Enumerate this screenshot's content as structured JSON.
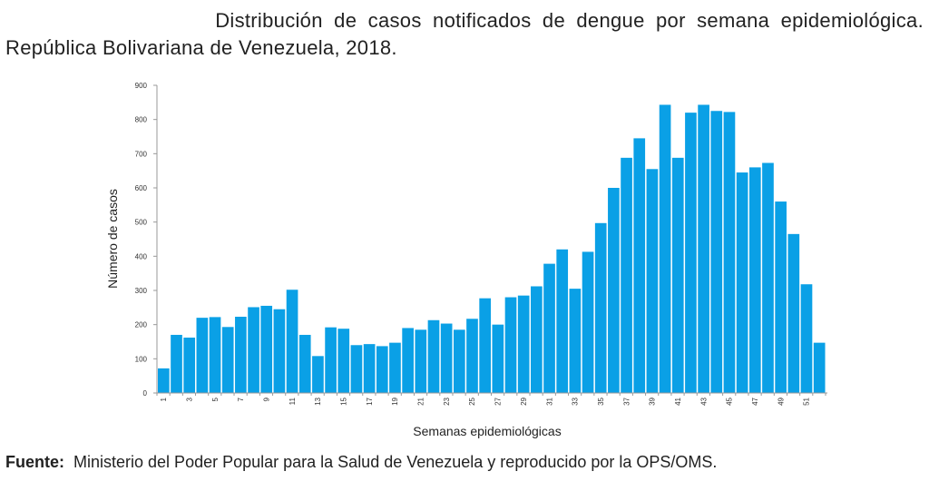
{
  "title_line1": "Distribución de casos notificados de dengue por semana epidemiológica.",
  "title_line2": "República Bolivariana de Venezuela, 2018.",
  "source_label": "Fuente:",
  "source_text": "Ministerio del Poder Popular para la Salud de Venezuela y reproducido por la OPS/OMS.",
  "chart_data": {
    "type": "bar",
    "xlabel": "Semanas epidemiológicas",
    "ylabel": "Número de casos",
    "ylim": [
      0,
      900
    ],
    "yticks": [
      0,
      100,
      200,
      300,
      400,
      500,
      600,
      700,
      800,
      900
    ],
    "grid": false,
    "bar_color": "#0aa0e6",
    "categories": [
      1,
      2,
      3,
      4,
      5,
      6,
      7,
      8,
      9,
      10,
      11,
      12,
      13,
      14,
      15,
      16,
      17,
      18,
      19,
      20,
      21,
      22,
      23,
      24,
      25,
      26,
      27,
      28,
      29,
      30,
      31,
      32,
      33,
      34,
      35,
      36,
      37,
      38,
      39,
      40,
      41,
      42,
      43,
      44,
      45,
      46,
      47,
      48,
      49,
      50,
      51,
      52
    ],
    "xtick_labels": [
      "1",
      "3",
      "5",
      "7",
      "9",
      "11",
      "13",
      "15",
      "17",
      "19",
      "21",
      "23",
      "25",
      "27",
      "29",
      "31",
      "33",
      "35",
      "37",
      "39",
      "41",
      "43",
      "45",
      "47",
      "49",
      "51"
    ],
    "values": [
      72,
      170,
      162,
      220,
      222,
      193,
      223,
      251,
      255,
      245,
      302,
      170,
      108,
      192,
      188,
      140,
      143,
      137,
      147,
      190,
      185,
      213,
      203,
      185,
      217,
      277,
      200,
      280,
      285,
      312,
      378,
      420,
      305,
      413,
      497,
      600,
      688,
      745,
      655,
      843,
      688,
      820,
      843,
      825,
      822,
      645,
      660,
      673,
      560,
      465,
      318,
      147
    ]
  }
}
